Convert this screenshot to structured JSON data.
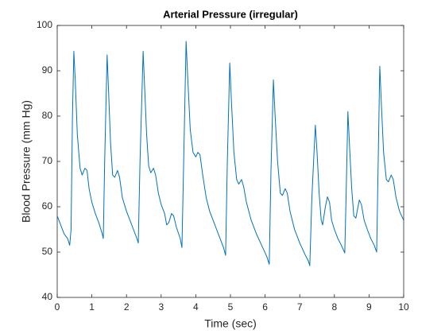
{
  "chart_data": {
    "type": "line",
    "title": "Arterial Pressure (irregular)",
    "xlabel": "Time (sec)",
    "ylabel": "Blood Pressure (mm Hg)",
    "color": "#0072bd",
    "xlim": [
      0,
      10
    ],
    "xticks": [
      0,
      1,
      2,
      3,
      4,
      5,
      6,
      7,
      8,
      9,
      10
    ],
    "ylim": [
      40,
      100
    ],
    "yticks": [
      40,
      50,
      60,
      70,
      80,
      90,
      100
    ],
    "grid": false,
    "x": [
      0,
      0.1,
      0.2,
      0.3,
      0.36,
      0.4,
      0.44,
      0.48,
      0.52,
      0.58,
      0.66,
      0.72,
      0.8,
      0.86,
      0.92,
      1.0,
      1.1,
      1.2,
      1.3,
      1.33,
      1.37,
      1.44,
      1.48,
      1.54,
      1.6,
      1.66,
      1.74,
      1.8,
      1.88,
      2.0,
      2.1,
      2.2,
      2.3,
      2.34,
      2.39,
      2.48,
      2.52,
      2.58,
      2.64,
      2.7,
      2.78,
      2.84,
      2.92,
      3.0,
      3.1,
      3.16,
      3.22,
      3.3,
      3.36,
      3.44,
      3.55,
      3.6,
      3.65,
      3.72,
      3.77,
      3.84,
      3.92,
      4.0,
      4.06,
      4.12,
      4.2,
      4.3,
      4.4,
      4.5,
      4.6,
      4.7,
      4.8,
      4.86,
      4.91,
      4.98,
      5.03,
      5.1,
      5.18,
      5.24,
      5.32,
      5.38,
      5.46,
      5.6,
      5.75,
      5.9,
      6.05,
      6.12,
      6.17,
      6.24,
      6.29,
      6.36,
      6.44,
      6.5,
      6.58,
      6.64,
      6.72,
      6.85,
      7.0,
      7.15,
      7.25,
      7.29,
      7.35,
      7.45,
      7.5,
      7.56,
      7.62,
      7.66,
      7.74,
      7.8,
      7.86,
      7.92,
      8.0,
      8.1,
      8.2,
      8.3,
      8.34,
      8.39,
      8.44,
      8.5,
      8.56,
      8.62,
      8.72,
      8.78,
      8.86,
      8.95,
      9.05,
      9.15,
      9.22,
      9.26,
      9.31,
      9.36,
      9.42,
      9.5,
      9.56,
      9.64,
      9.7,
      9.78,
      9.88,
      10
    ],
    "values": [
      58,
      56,
      54,
      53,
      51.5,
      55,
      80,
      94.3,
      88,
      76,
      68.5,
      67,
      68.5,
      68,
      64,
      61,
      58.5,
      56.5,
      54,
      53,
      70,
      93.5,
      86,
      74,
      67,
      66.5,
      68,
      66.5,
      62,
      59,
      57,
      55,
      53,
      52,
      70,
      94.3,
      87,
      76,
      69,
      67.5,
      68.5,
      67,
      63,
      60.5,
      58.5,
      56,
      56.5,
      58.5,
      58,
      55.5,
      53,
      51,
      70,
      96.5,
      88,
      77,
      72,
      71,
      72,
      71.5,
      67,
      62,
      59,
      57,
      55,
      53,
      51,
      49.3,
      70,
      91.7,
      83,
      72,
      66,
      65,
      66,
      64.5,
      61,
      57,
      54,
      51.5,
      49,
      47.3,
      68,
      88,
      80,
      70,
      63,
      62.5,
      64,
      63,
      59,
      55,
      52,
      49.5,
      48,
      47,
      62,
      78,
      72,
      63,
      57,
      56,
      60,
      62.2,
      61,
      57,
      55,
      53,
      51.5,
      49.8,
      63,
      81,
      73,
      64,
      58,
      57.5,
      61.5,
      60.5,
      57,
      55,
      53,
      51.5,
      50,
      68,
      91,
      82,
      72,
      66,
      65.5,
      67,
      66,
      62,
      59,
      57
    ]
  }
}
